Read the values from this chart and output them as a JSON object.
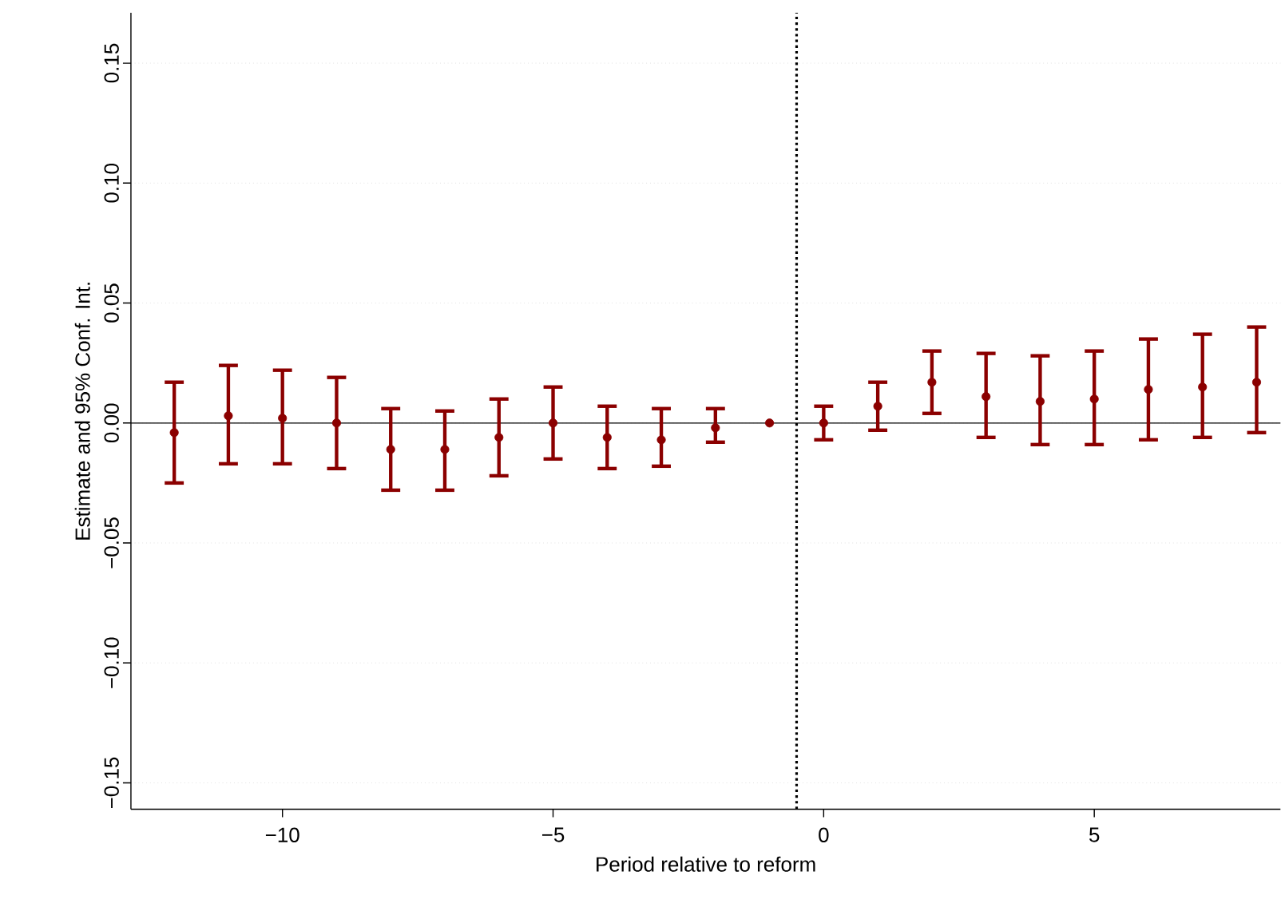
{
  "chart_data": {
    "type": "scatter",
    "xlabel": "Period relative to reform",
    "ylabel": "Estimate and 95% Conf. Int.",
    "x": [
      -12,
      -11,
      -10,
      -9,
      -8,
      -7,
      -6,
      -5,
      -4,
      -3,
      -2,
      -1,
      0,
      1,
      2,
      3,
      4,
      5,
      6,
      7,
      8
    ],
    "series": [
      {
        "color": "#8b0000",
        "values": [
          -0.004,
          0.003,
          0.002,
          0.0,
          -0.011,
          -0.011,
          -0.006,
          0.0,
          -0.006,
          -0.007,
          -0.002,
          0.0,
          0.0,
          0.007,
          0.017,
          0.011,
          0.009,
          0.01,
          0.014,
          0.015,
          0.017
        ],
        "errors": [
          [
            -0.025,
            0.017
          ],
          [
            -0.017,
            0.024
          ],
          [
            -0.017,
            0.022
          ],
          [
            -0.019,
            0.019
          ],
          [
            -0.028,
            0.006
          ],
          [
            -0.028,
            0.005
          ],
          [
            -0.022,
            0.01
          ],
          [
            -0.015,
            0.015
          ],
          [
            -0.019,
            0.007
          ],
          [
            -0.018,
            0.006
          ],
          [
            -0.008,
            0.006
          ],
          null,
          [
            -0.007,
            0.007
          ],
          [
            -0.003,
            0.017
          ],
          [
            0.004,
            0.03
          ],
          [
            -0.006,
            0.029
          ],
          [
            -0.009,
            0.028
          ],
          [
            -0.009,
            0.03
          ],
          [
            -0.007,
            0.035
          ],
          [
            -0.006,
            0.037
          ],
          [
            -0.004,
            0.04
          ]
        ]
      }
    ],
    "xlim": [
      -12.8,
      8.44
    ],
    "ylim": [
      -0.161,
      0.171
    ],
    "xticks": [
      {
        "value": -10,
        "label": "−10"
      },
      {
        "value": -5,
        "label": "−5"
      },
      0,
      5
    ],
    "yticks": [
      {
        "value": -0.15,
        "label": "−0.15"
      },
      {
        "value": -0.1,
        "label": "−0.10"
      },
      {
        "value": -0.05,
        "label": "−0.05"
      },
      {
        "value": 0,
        "label": "0.00"
      },
      {
        "value": 0.05,
        "label": "0.05"
      },
      {
        "value": 0.1,
        "label": "0.10"
      },
      {
        "value": 0.15,
        "label": "0.15"
      }
    ],
    "ref_lines": [
      {
        "axis": "y",
        "value": 0,
        "color": "#000000",
        "line_style": "solid"
      },
      {
        "axis": "x",
        "value": -0.5,
        "color": "#000000",
        "line_style": "dotted"
      }
    ],
    "grid": "y",
    "marker": "circle"
  }
}
